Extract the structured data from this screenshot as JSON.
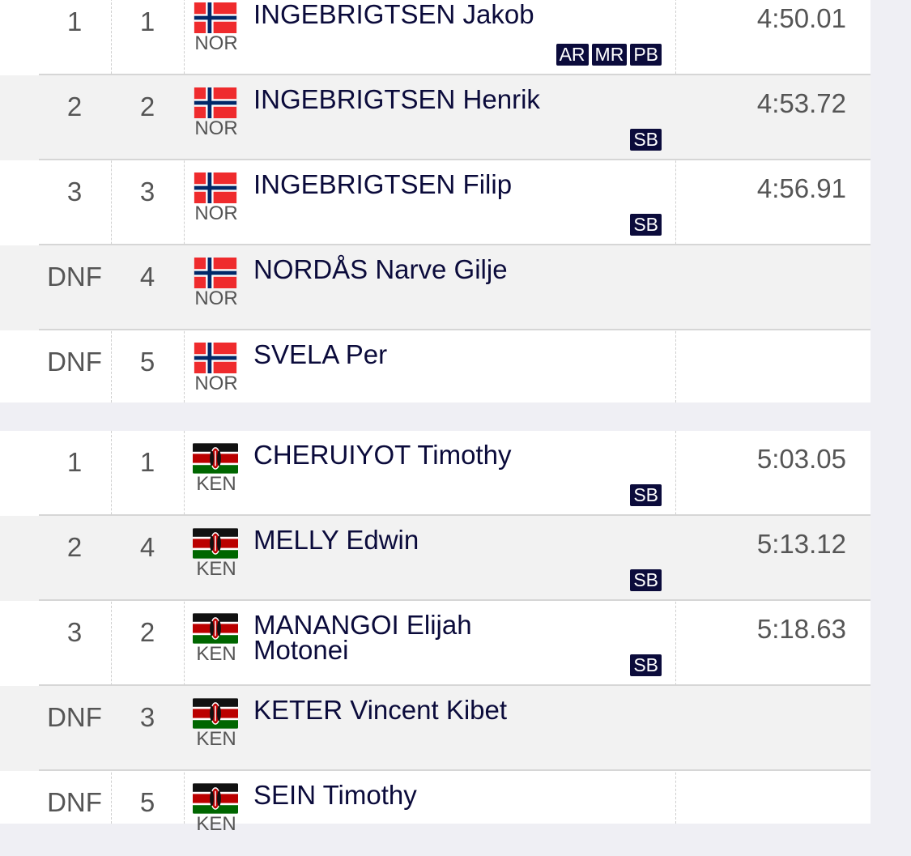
{
  "groups": [
    {
      "rows": [
        {
          "rank": "1",
          "lane": "1",
          "country": "NOR",
          "flag": "norway-flag-icon",
          "name": "INGEBRIGTSEN Jakob",
          "badges": [
            "AR",
            "MR",
            "PB"
          ],
          "time": "4:50.01"
        },
        {
          "rank": "2",
          "lane": "2",
          "country": "NOR",
          "flag": "norway-flag-icon",
          "name": "INGEBRIGTSEN Henrik",
          "badges": [
            "SB"
          ],
          "time": "4:53.72"
        },
        {
          "rank": "3",
          "lane": "3",
          "country": "NOR",
          "flag": "norway-flag-icon",
          "name": "INGEBRIGTSEN Filip",
          "badges": [
            "SB"
          ],
          "time": "4:56.91"
        },
        {
          "rank": "DNF",
          "lane": "4",
          "country": "NOR",
          "flag": "norway-flag-icon",
          "name": "NORDÅS Narve Gilje",
          "badges": [],
          "time": ""
        },
        {
          "rank": "DNF",
          "lane": "5",
          "country": "NOR",
          "flag": "norway-flag-icon",
          "name": "SVELA Per",
          "badges": [],
          "time": ""
        }
      ]
    },
    {
      "rows": [
        {
          "rank": "1",
          "lane": "1",
          "country": "KEN",
          "flag": "kenya-flag-icon",
          "name": "CHERUIYOT Timothy",
          "badges": [
            "SB"
          ],
          "time": "5:03.05"
        },
        {
          "rank": "2",
          "lane": "4",
          "country": "KEN",
          "flag": "kenya-flag-icon",
          "name": "MELLY Edwin",
          "badges": [
            "SB"
          ],
          "time": "5:13.12"
        },
        {
          "rank": "3",
          "lane": "2",
          "country": "KEN",
          "flag": "kenya-flag-icon",
          "name": "MANANGOI Elijah Motonei",
          "badges": [
            "SB"
          ],
          "time": "5:18.63"
        },
        {
          "rank": "DNF",
          "lane": "3",
          "country": "KEN",
          "flag": "kenya-flag-icon",
          "name": "KETER Vincent Kibet",
          "badges": [],
          "time": ""
        },
        {
          "rank": "DNF",
          "lane": "5",
          "country": "KEN",
          "flag": "kenya-flag-icon",
          "name": "SEIN Timothy",
          "badges": [],
          "time": ""
        }
      ]
    }
  ],
  "colors": {
    "ink": "#0b0b3b",
    "muted": "#555555",
    "row_alt": "#f2f2f2",
    "background": "#efeff4"
  }
}
